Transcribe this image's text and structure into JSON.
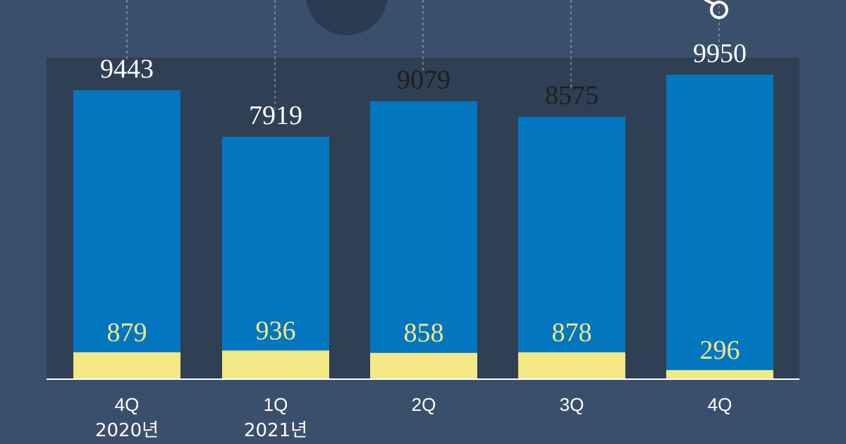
{
  "colors": {
    "background": "#3a4f6b",
    "plot_background": "#2f3f54",
    "bar_total": "#0277c0",
    "bar_segment": "#f3e786",
    "text_light": "#ffffff",
    "text_dark": "#1f1f1f",
    "text_highlight": "#f3e786",
    "guide_line": "#d7dde6",
    "decor_circle": "#2b3b52"
  },
  "chart_data": {
    "type": "bar",
    "categories": [
      "4Q",
      "1Q",
      "2Q",
      "3Q",
      "4Q"
    ],
    "category_years": [
      "2020년",
      "2021년",
      "",
      "",
      ""
    ],
    "series": [
      {
        "values": [
          9443,
          7919,
          9079,
          8575,
          9950
        ],
        "color": "#0277c0"
      },
      {
        "values": [
          879,
          936,
          858,
          878,
          296
        ],
        "color": "#f3e786"
      }
    ],
    "ylim": [
      0,
      10500
    ],
    "title": "",
    "xlabel": "",
    "ylabel": "",
    "grid": false
  }
}
